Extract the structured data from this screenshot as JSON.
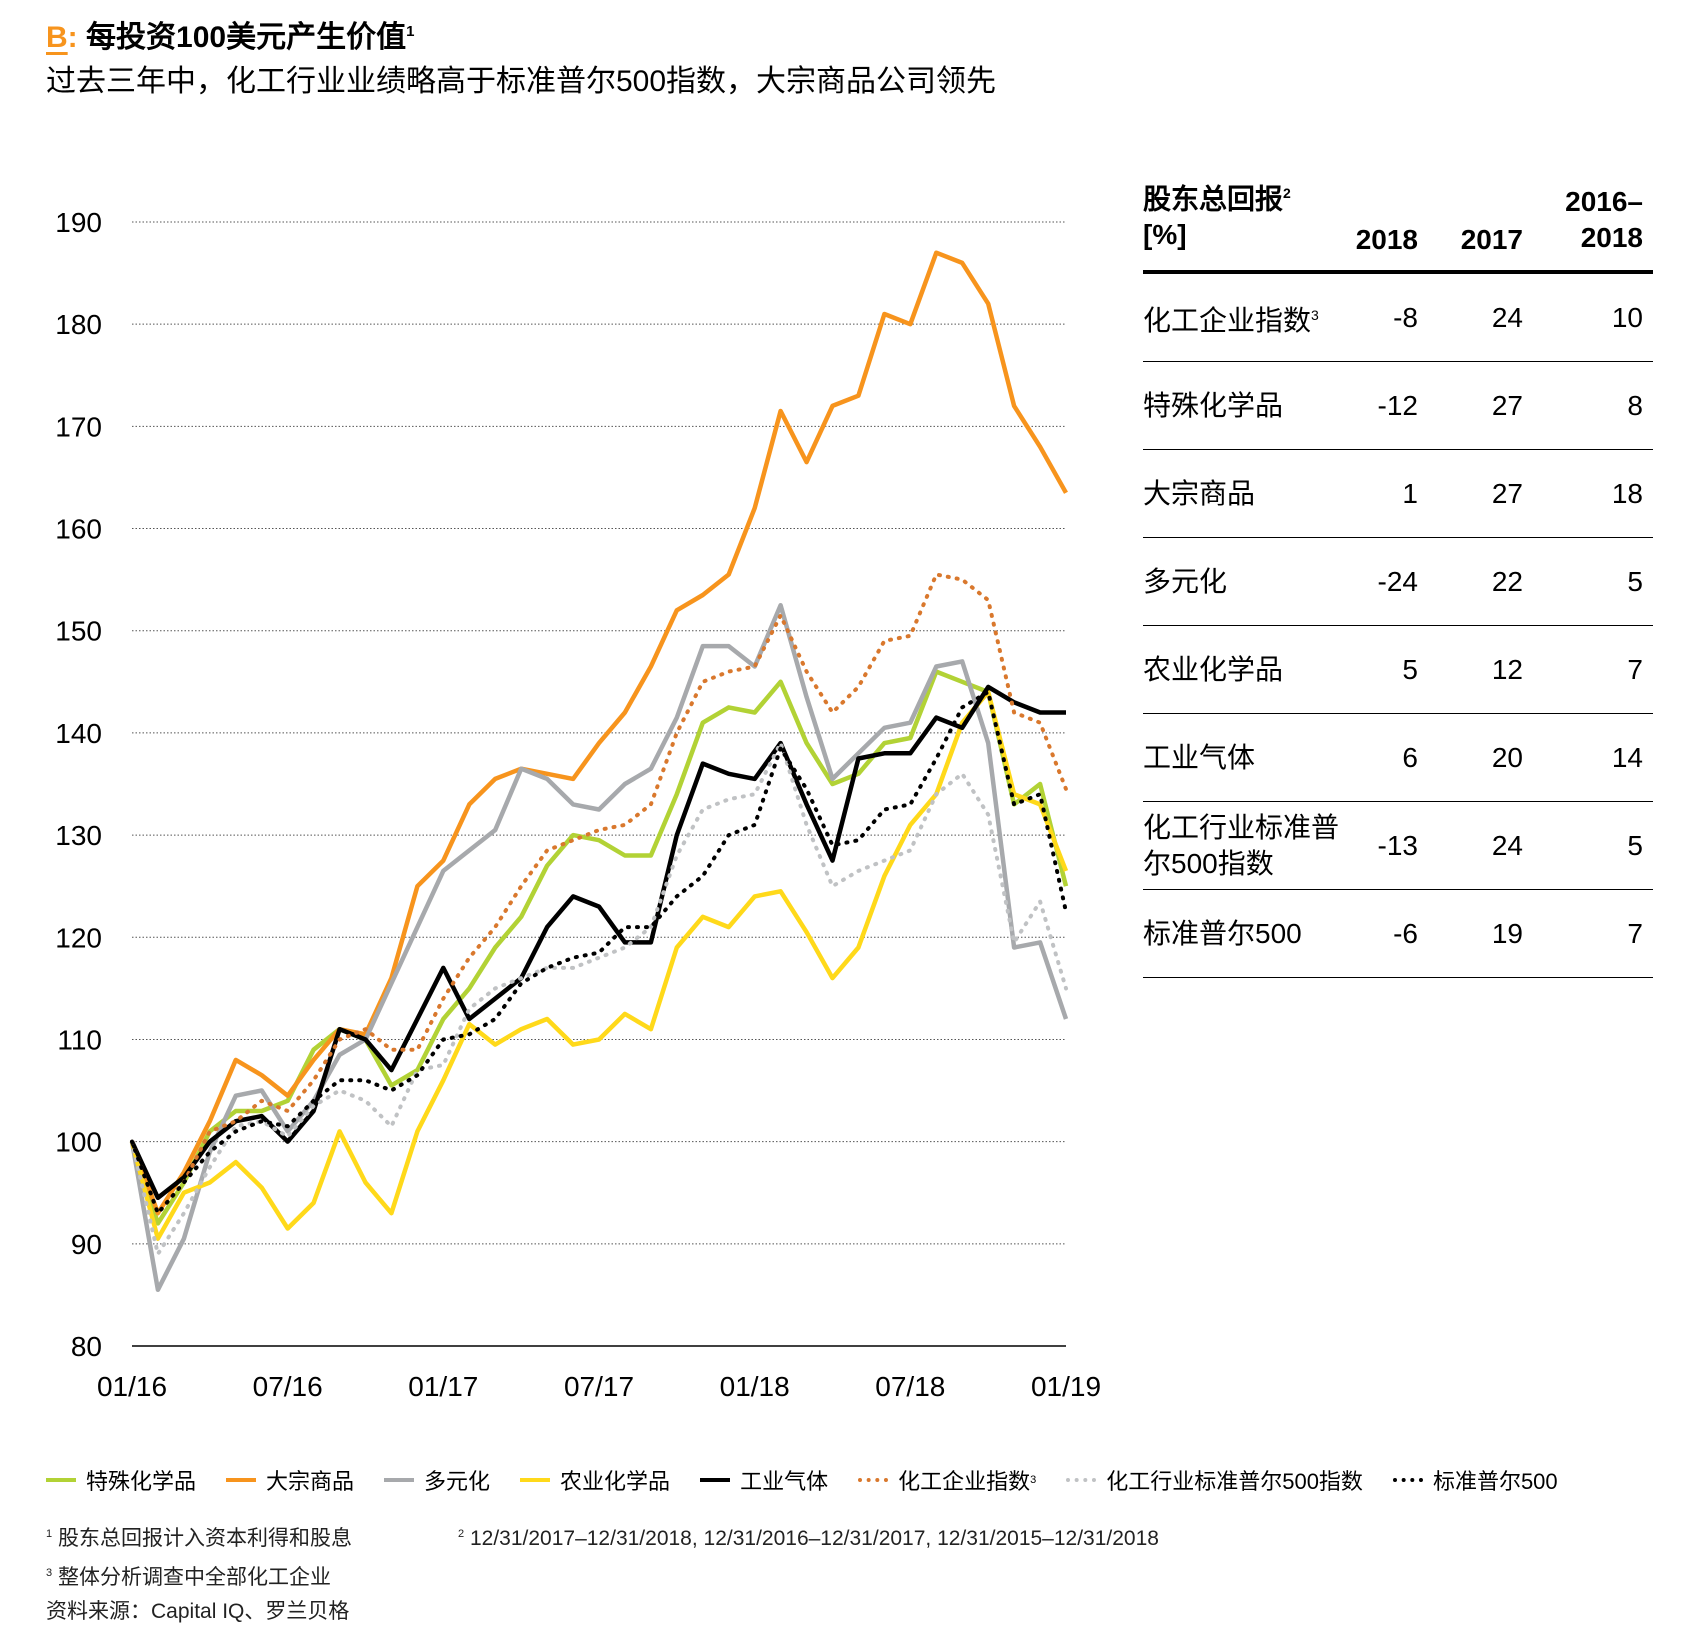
{
  "header": {
    "letter": "B",
    "colon": ":",
    "title": "每投资100美元产生价值",
    "title_sup": "1",
    "subtitle": "过去三年中，化工行业业绩略高于标准普尔500指数，大宗商品公司领先"
  },
  "colors": {
    "accent": "#f7941d",
    "specialty": "#b2d235",
    "commodity": "#f7941d",
    "diversified": "#a7a9ac",
    "agri": "#ffd91a",
    "gases": "#000000",
    "chem_index": "#d9782d",
    "sp_chem": "#c0c2c4",
    "sp500": "#000000"
  },
  "chart_data": {
    "type": "line",
    "x": [
      "01/16",
      "02/16",
      "03/16",
      "04/16",
      "05/16",
      "06/16",
      "07/16",
      "08/16",
      "09/16",
      "10/16",
      "11/16",
      "12/16",
      "01/17",
      "02/17",
      "03/17",
      "04/17",
      "05/17",
      "06/17",
      "07/17",
      "08/17",
      "09/17",
      "10/17",
      "11/17",
      "12/17",
      "01/18",
      "02/18",
      "03/18",
      "04/18",
      "05/18",
      "06/18",
      "07/18",
      "08/18",
      "09/18",
      "10/18",
      "11/18",
      "12/18",
      "01/19"
    ],
    "x_ticks": [
      "01/16",
      "07/16",
      "01/17",
      "07/17",
      "01/18",
      "07/18",
      "01/19"
    ],
    "ylim": [
      80,
      190
    ],
    "y_ticks": [
      80,
      90,
      100,
      110,
      120,
      130,
      140,
      150,
      160,
      170,
      180,
      190
    ],
    "grid": true,
    "legend_position": "bottom",
    "series": [
      {
        "name": "特殊化学品",
        "key": "specialty",
        "style": "solid",
        "values": [
          100,
          92,
          96,
          101,
          103,
          103,
          104,
          109,
          111,
          110,
          105.5,
          107,
          112,
          115,
          119,
          122,
          127,
          130,
          129.5,
          128,
          128,
          134,
          141,
          142.5,
          142,
          145,
          139,
          135,
          136,
          139,
          139.5,
          146,
          145,
          144,
          133,
          135,
          125
        ]
      },
      {
        "name": "大宗商品",
        "key": "commodity",
        "style": "solid",
        "values": [
          100,
          93,
          97,
          102,
          108,
          106.5,
          104.5,
          108,
          111,
          110.5,
          116,
          125,
          127.5,
          133,
          135.5,
          136.5,
          136,
          135.5,
          139,
          142,
          146.5,
          152,
          153.5,
          155.5,
          162,
          171.5,
          166.5,
          172,
          173,
          181,
          180,
          187,
          186,
          182,
          172,
          168,
          163.5
        ]
      },
      {
        "name": "多元化",
        "key": "diversified",
        "style": "solid",
        "values": [
          100,
          85.5,
          90.5,
          99,
          104.5,
          105,
          101,
          104,
          108.5,
          110,
          115.5,
          121,
          126.5,
          128.5,
          130.5,
          136.5,
          135.5,
          133,
          132.5,
          135,
          136.5,
          141.5,
          148.5,
          148.5,
          146.5,
          152.5,
          143.5,
          135.5,
          138,
          140.5,
          141,
          146.5,
          147,
          139,
          119,
          119.5,
          112
        ]
      },
      {
        "name": "农业化学品",
        "key": "agri",
        "style": "solid",
        "values": [
          100,
          90.5,
          95,
          96,
          98,
          95.5,
          91.5,
          94,
          101,
          96,
          93,
          101,
          106,
          111.5,
          109.5,
          111,
          112,
          109.5,
          110,
          112.5,
          111,
          119,
          122,
          121,
          124,
          124.5,
          120.5,
          116,
          119,
          126,
          131,
          134,
          141,
          144,
          134,
          133,
          126.5
        ]
      },
      {
        "name": "工业气体",
        "key": "gases",
        "style": "solid",
        "values": [
          100,
          94.5,
          96.5,
          100,
          102,
          102.5,
          100,
          103,
          111,
          110,
          107,
          112,
          117,
          112,
          114,
          116,
          121,
          124,
          123,
          119.5,
          119.5,
          130,
          137,
          136,
          135.5,
          139,
          133,
          127.5,
          137.5,
          138,
          138,
          141.5,
          140.5,
          144.5,
          143,
          142,
          142
        ]
      },
      {
        "name": "化工企业指数",
        "name_sup": "3",
        "key": "chem_index",
        "style": "dotted",
        "values": [
          100,
          93,
          96,
          101,
          102,
          104,
          103,
          106,
          110,
          111,
          109,
          109,
          114,
          118,
          121,
          125,
          128.5,
          129.5,
          130.5,
          131,
          133,
          140,
          145,
          146,
          146.5,
          151.5,
          146,
          142,
          144.5,
          149,
          149.5,
          155.5,
          155,
          153,
          142,
          141,
          134.5
        ]
      },
      {
        "name": "化工行业标准普尔500指数",
        "key": "sp_chem",
        "style": "dotted",
        "values": [
          100,
          89,
          93,
          97.5,
          101.5,
          102,
          100.5,
          103.5,
          105,
          104,
          101.5,
          107,
          107.5,
          113,
          115,
          116,
          117,
          117,
          118,
          119,
          121,
          128,
          132.5,
          133.5,
          134,
          139,
          131,
          125,
          126.5,
          127.5,
          128.5,
          134,
          136,
          132,
          119.5,
          123.5,
          115
        ]
      },
      {
        "name": "标准普尔500",
        "key": "sp500",
        "style": "dotted",
        "values": [
          100,
          93,
          96,
          99,
          101,
          102,
          101.5,
          104,
          106,
          106,
          105,
          106.5,
          110,
          110.5,
          112,
          115.5,
          117,
          118,
          118.5,
          121,
          121,
          124,
          126,
          130,
          131,
          138.5,
          134.5,
          129,
          129.5,
          132.5,
          133,
          137.5,
          142.5,
          144,
          133,
          134,
          122.5
        ]
      }
    ]
  },
  "table": {
    "head_label_line1": "股东总回报",
    "head_label_sup": "2",
    "head_label_line2": "[%]",
    "col1": "2018",
    "col2": "2017",
    "col3_line1": "2016–",
    "col3_line2": "2018",
    "rows": [
      {
        "label": "化工企业指数",
        "sup": "3",
        "v2018": "-8",
        "v2017": "24",
        "v1618": "10"
      },
      {
        "label": "特殊化学品",
        "sup": "",
        "v2018": "-12",
        "v2017": "27",
        "v1618": "8"
      },
      {
        "label": "大宗商品",
        "sup": "",
        "v2018": "1",
        "v2017": "27",
        "v1618": "18"
      },
      {
        "label": "多元化",
        "sup": "",
        "v2018": "-24",
        "v2017": "22",
        "v1618": "5"
      },
      {
        "label": "农业化学品",
        "sup": "",
        "v2018": "5",
        "v2017": "12",
        "v1618": "7"
      },
      {
        "label": "工业气体",
        "sup": "",
        "v2018": "6",
        "v2017": "20",
        "v1618": "14"
      },
      {
        "label": "化工行业标准普尔500指数",
        "sup": "",
        "v2018": "-13",
        "v2017": "24",
        "v1618": "5"
      },
      {
        "label": "标准普尔500",
        "sup": "",
        "v2018": "-6",
        "v2017": "19",
        "v1618": "7"
      }
    ]
  },
  "footnotes": {
    "n1_sup": "1",
    "n1": "股东总回报计入资本利得和股息",
    "n2_sup": "2",
    "n2": "12/31/2017–12/31/2018, 12/31/2016–12/31/2017, 12/31/2015–12/31/2018",
    "n3_sup": "3",
    "n3": "整体分析调查中全部化工企业",
    "source": "资料来源：Capital IQ、罗兰贝格"
  }
}
